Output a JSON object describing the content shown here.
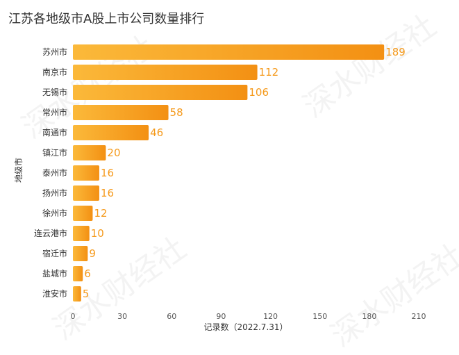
{
  "title": "江苏各地级市A股上市公司数量排行",
  "watermark": "深水财经社",
  "chart_data": {
    "type": "bar",
    "orientation": "horizontal",
    "title": "江苏各地级市A股上市公司数量排行",
    "xlabel": "记录数（2022.7.31）",
    "ylabel": "地级市",
    "categories": [
      "苏州市",
      "南京市",
      "无锡市",
      "常州市",
      "南通市",
      "镇江市",
      "泰州市",
      "扬州市",
      "徐州市",
      "连云港市",
      "宿迁市",
      "盐城市",
      "淮安市"
    ],
    "values": [
      189,
      112,
      106,
      58,
      46,
      20,
      16,
      16,
      12,
      10,
      9,
      6,
      5
    ],
    "xlim": [
      0,
      210
    ],
    "xticks": [
      0,
      30,
      60,
      90,
      120,
      150,
      180,
      210
    ],
    "grid": false,
    "legend": "none",
    "colors": {
      "bar_start": "#fbb93a",
      "bar_end": "#f39013",
      "label": "#f59a1c"
    }
  }
}
